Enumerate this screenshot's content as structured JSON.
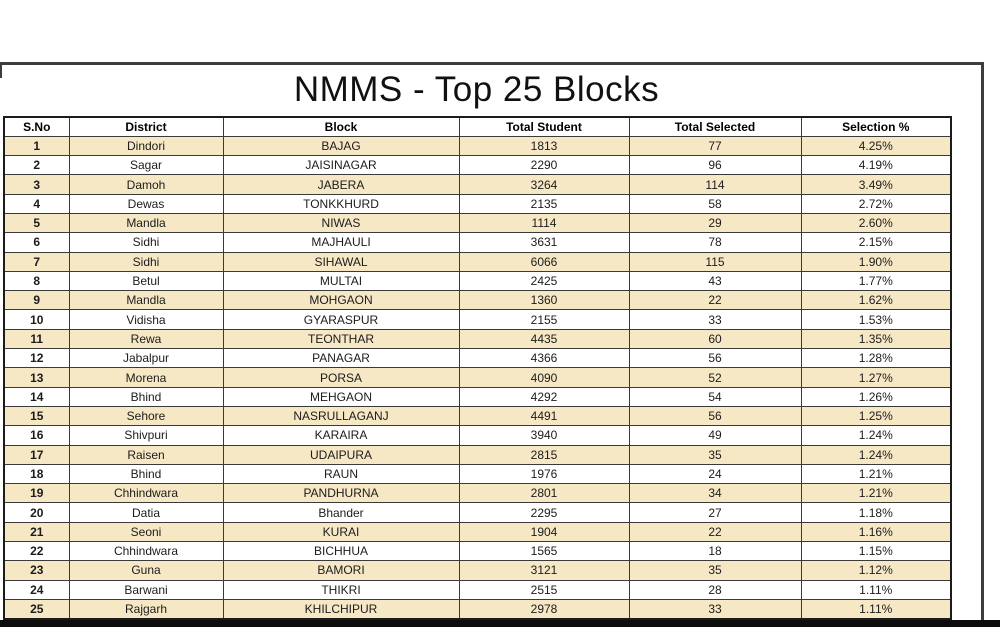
{
  "page": {
    "title": "NMMS - Top 25 Blocks"
  },
  "colors": {
    "stripe": "#f6e7c5",
    "grid_line": "#3a3a3a",
    "table_outer_border": "#1c1c1c",
    "frame_line": "#3d3d3d",
    "bottom_bar": "#0d0d0d",
    "text": "#1c1c1c"
  },
  "table": {
    "columns": [
      "S.No",
      "District",
      "Block",
      "Total Student",
      "Total Selected",
      "Selection %"
    ],
    "rows": [
      [
        "1",
        "Dindori",
        "BAJAG",
        "1813",
        "77",
        "4.25%"
      ],
      [
        "2",
        "Sagar",
        "JAISINAGAR",
        "2290",
        "96",
        "4.19%"
      ],
      [
        "3",
        "Damoh",
        "JABERA",
        "3264",
        "114",
        "3.49%"
      ],
      [
        "4",
        "Dewas",
        "TONKKHURD",
        "2135",
        "58",
        "2.72%"
      ],
      [
        "5",
        "Mandla",
        "NIWAS",
        "1114",
        "29",
        "2.60%"
      ],
      [
        "6",
        "Sidhi",
        "MAJHAULI",
        "3631",
        "78",
        "2.15%"
      ],
      [
        "7",
        "Sidhi",
        "SIHAWAL",
        "6066",
        "115",
        "1.90%"
      ],
      [
        "8",
        "Betul",
        "MULTAI",
        "2425",
        "43",
        "1.77%"
      ],
      [
        "9",
        "Mandla",
        "MOHGAON",
        "1360",
        "22",
        "1.62%"
      ],
      [
        "10",
        "Vidisha",
        "GYARASPUR",
        "2155",
        "33",
        "1.53%"
      ],
      [
        "11",
        "Rewa",
        "TEONTHAR",
        "4435",
        "60",
        "1.35%"
      ],
      [
        "12",
        "Jabalpur",
        "PANAGAR",
        "4366",
        "56",
        "1.28%"
      ],
      [
        "13",
        "Morena",
        "PORSA",
        "4090",
        "52",
        "1.27%"
      ],
      [
        "14",
        "Bhind",
        "MEHGAON",
        "4292",
        "54",
        "1.26%"
      ],
      [
        "15",
        "Sehore",
        "NASRULLAGANJ",
        "4491",
        "56",
        "1.25%"
      ],
      [
        "16",
        "Shivpuri",
        "KARAIRA",
        "3940",
        "49",
        "1.24%"
      ],
      [
        "17",
        "Raisen",
        "UDAIPURA",
        "2815",
        "35",
        "1.24%"
      ],
      [
        "18",
        "Bhind",
        "RAUN",
        "1976",
        "24",
        "1.21%"
      ],
      [
        "19",
        "Chhindwara",
        "PANDHURNA",
        "2801",
        "34",
        "1.21%"
      ],
      [
        "20",
        "Datia",
        "Bhander",
        "2295",
        "27",
        "1.18%"
      ],
      [
        "21",
        "Seoni",
        "KURAI",
        "1904",
        "22",
        "1.16%"
      ],
      [
        "22",
        "Chhindwara",
        "BICHHUA",
        "1565",
        "18",
        "1.15%"
      ],
      [
        "23",
        "Guna",
        "BAMORI",
        "3121",
        "35",
        "1.12%"
      ],
      [
        "24",
        "Barwani",
        "THIKRI",
        "2515",
        "28",
        "1.11%"
      ],
      [
        "25",
        "Rajgarh",
        "KHILCHIPUR",
        "2978",
        "33",
        "1.11%"
      ]
    ]
  }
}
